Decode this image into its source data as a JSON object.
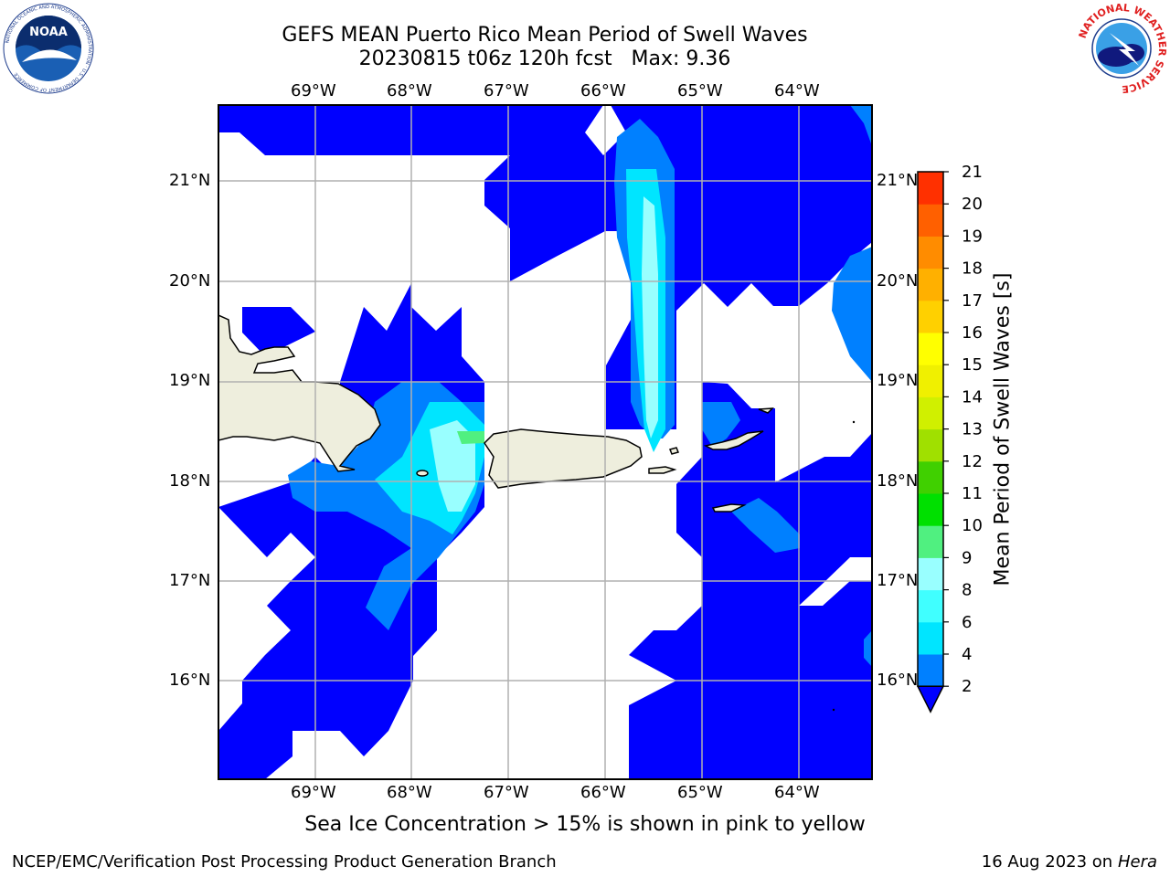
{
  "header": {
    "title_line1": "GEFS MEAN Puerto Rico Mean Period of Swell Waves",
    "title_line2": "20230815 t06z 120h fcst   Max: 9.36"
  },
  "logos": {
    "noara": "NOAA",
    "noaa_ring": "NATIONAL OCEANIC AND ATMOSPHERIC ADMINISTRATION · U.S. DEPARTMENT OF COMMERCE",
    "nws_ring": "NATIONAL WEATHER SERVICE"
  },
  "map": {
    "lon_ticks": [
      "69°W",
      "68°W",
      "67°W",
      "66°W",
      "65°W",
      "64°W"
    ],
    "lat_ticks": [
      "21°N",
      "20°N",
      "19°N",
      "18°N",
      "17°N",
      "16°N"
    ],
    "lon_values": [
      -69,
      -68,
      -67,
      -66,
      -65,
      -64
    ],
    "lat_values": [
      21,
      20,
      19,
      18,
      17,
      16
    ],
    "extent": {
      "lon": [
        -70,
        -63.25
      ],
      "lat": [
        15,
        21.75
      ]
    },
    "grid": true
  },
  "colorbar": {
    "title": "Mean Period of Swell Waves [s]",
    "tick_labels": [
      "2",
      "4",
      "6",
      "8",
      "9",
      "10",
      "11",
      "12",
      "13",
      "14",
      "15",
      "16",
      "17",
      "18",
      "19",
      "20",
      "21"
    ],
    "levels": [
      2,
      4,
      6,
      8,
      9,
      10,
      11,
      12,
      13,
      14,
      15,
      16,
      17,
      18,
      19,
      20,
      21
    ],
    "colors": [
      "#0080ff",
      "#00e5ff",
      "#40ffff",
      "#99ffff",
      "#50f080",
      "#00e000",
      "#40d000",
      "#a0e000",
      "#d0f000",
      "#f0f000",
      "#ffff00",
      "#ffd000",
      "#ffb000",
      "#ff8c00",
      "#ff6000",
      "#ff3000",
      "#ff0000"
    ],
    "extend_min_color": "#0000ff"
  },
  "caption": "Sea Ice Concentration > 15% is shown in pink to yellow",
  "footer": {
    "left": "NCEP/EMC/Verification Post Processing Product Generation Branch",
    "date": "16 Aug 2023 on",
    "machine": "Hera"
  },
  "colors": {
    "land": "#eeeedd",
    "swell_2_4": "#0000ff",
    "swell_4_6": "#0080ff",
    "swell_6_8": "#00e5ff",
    "swell_8_9": "#99ffff",
    "gridline": "#b0b0b0"
  }
}
